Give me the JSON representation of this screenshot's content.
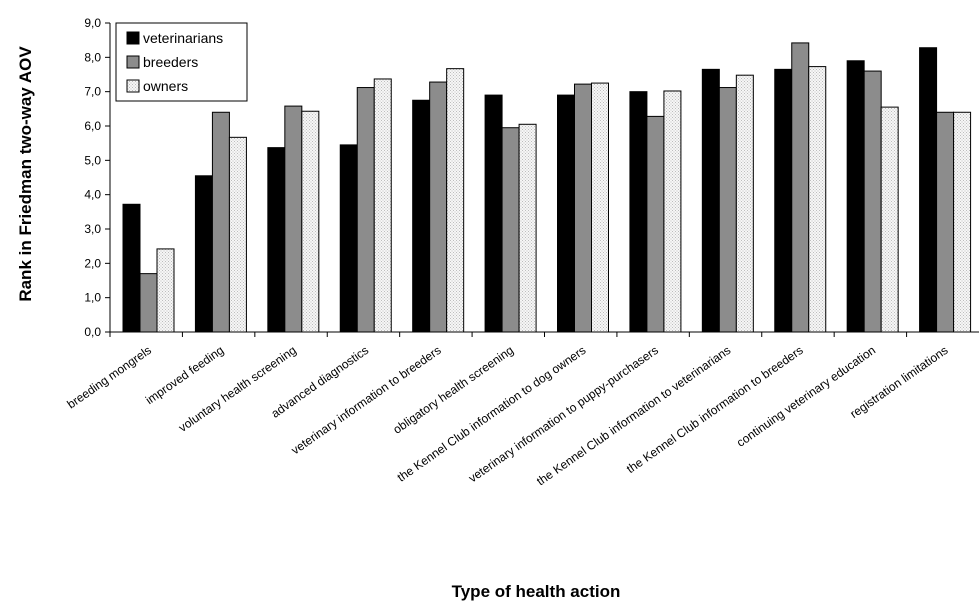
{
  "chart_data": {
    "type": "bar",
    "title": "",
    "xlabel": "Type of health action",
    "ylabel": "Rank in Friedman two-way AOV",
    "ylim": [
      0,
      9
    ],
    "yticks": [
      "0,0",
      "1,0",
      "2,0",
      "3,0",
      "4,0",
      "5,0",
      "6,0",
      "7,0",
      "8,0",
      "9,0"
    ],
    "grid": false,
    "legend_position": "top-left",
    "categories": [
      "breeding mongrels",
      "improved feeding",
      "voluntary health screening",
      "advanced diagnostics",
      "veterinary information to breeders",
      "obligatory health screening",
      "the Kennel Club information to dog owners",
      "veterinary information to puppy-purchasers",
      "the Kennel Club information to veterinarians",
      "the Kennel Club information to breeders",
      "continuing veterinary education",
      "registration limitations"
    ],
    "series": [
      {
        "name": "veterinarians",
        "color": "#000000",
        "values": [
          3.72,
          4.55,
          5.37,
          5.45,
          6.75,
          6.9,
          6.9,
          7.0,
          7.65,
          7.65,
          7.9,
          8.28
        ]
      },
      {
        "name": "breeders",
        "color": "#8c8c8c",
        "values": [
          1.7,
          6.4,
          6.58,
          7.12,
          7.28,
          5.95,
          7.22,
          6.28,
          7.12,
          8.42,
          7.6,
          6.4
        ]
      },
      {
        "name": "owners",
        "color": "#f4f4f4",
        "values": [
          2.42,
          5.67,
          6.43,
          7.37,
          7.67,
          6.05,
          7.25,
          7.02,
          7.48,
          7.73,
          6.55,
          6.4
        ]
      }
    ]
  }
}
